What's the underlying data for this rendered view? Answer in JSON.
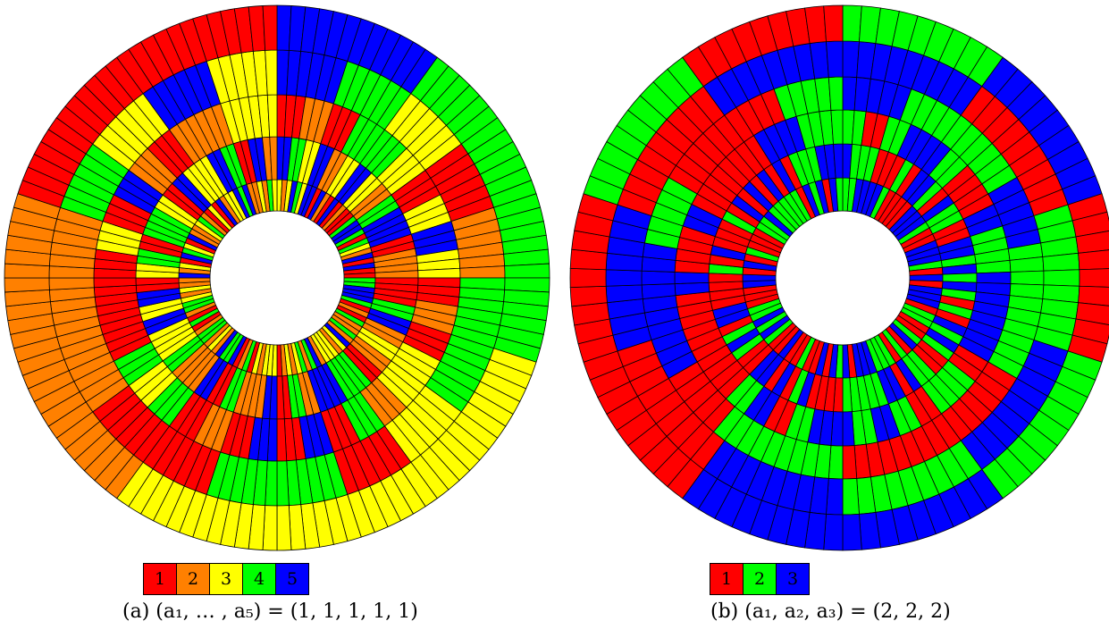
{
  "colors": {
    "1": "#ff0000",
    "2": "#ff8000",
    "3": "#ffff00",
    "4": "#00ff00",
    "5": "#0000ff",
    "b1": "#ff0000",
    "b2": "#00ff00",
    "b3": "#0000ff",
    "outline": "#000000"
  },
  "panel_a": {
    "caption": "(a) (a₁, … , a₅) = (1, 1, 1, 1, 1)",
    "legend": [
      {
        "label": "1",
        "color": "#ff0000"
      },
      {
        "label": "2",
        "color": "#ff8000"
      },
      {
        "label": "3",
        "color": "#ffff00"
      },
      {
        "label": "4",
        "color": "#00ff00"
      },
      {
        "label": "5",
        "color": "#0000ff"
      }
    ],
    "rings": 5,
    "sectors_per_ring": 120,
    "outer_ring_blocks": [
      {
        "start": 0,
        "count": 12,
        "color": "5"
      },
      {
        "start": 12,
        "count": 12,
        "color": "4"
      },
      {
        "start": 24,
        "count": 12,
        "color": "4"
      },
      {
        "start": 36,
        "count": 12,
        "color": "3"
      },
      {
        "start": 48,
        "count": 12,
        "color": "3"
      },
      {
        "start": 60,
        "count": 12,
        "color": "3"
      },
      {
        "start": 72,
        "count": 12,
        "color": "2"
      },
      {
        "start": 84,
        "count": 12,
        "color": "2"
      },
      {
        "start": 96,
        "count": 12,
        "color": "1"
      },
      {
        "start": 108,
        "count": 12,
        "color": "1"
      }
    ]
  },
  "panel_b": {
    "caption": "(b) (a₁, a₂, a₃) = (2, 2, 2)",
    "legend": [
      {
        "label": "1",
        "color": "#ff0000"
      },
      {
        "label": "2",
        "color": "#00ff00"
      },
      {
        "label": "3",
        "color": "#0000ff"
      }
    ],
    "rings": 6,
    "sectors_per_ring": 90
  }
}
